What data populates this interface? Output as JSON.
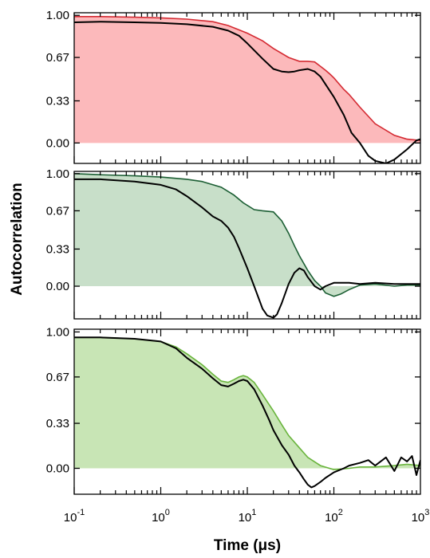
{
  "chart_data": {
    "type": "line",
    "xlabel": "Time (μs)",
    "ylabel": "Autocorrelation",
    "x_scale": "log",
    "xlim": [
      0.1,
      1000
    ],
    "x_ticks": [
      {
        "value": 0.1,
        "base": "10",
        "exp": "-1"
      },
      {
        "value": 1,
        "base": "10",
        "exp": "0"
      },
      {
        "value": 10,
        "base": "10",
        "exp": "1"
      },
      {
        "value": 100,
        "base": "10",
        "exp": "2"
      },
      {
        "value": 1000,
        "base": "10",
        "exp": "3"
      }
    ],
    "panels": [
      {
        "ylim": [
          -0.16,
          1.02
        ],
        "y_ticks": [
          "1.00",
          "0.67",
          "0.33",
          "0.00"
        ],
        "colors": {
          "fill": "#fcb9bb",
          "line": "#d42a32",
          "overlay": "#000000"
        },
        "series": [
          {
            "x": [
              0.1,
              0.2,
              0.5,
              1,
              2,
              4,
              6,
              10,
              15,
              20,
              30,
              40,
              50,
              60,
              70,
              80,
              90,
              100,
              130,
              150,
              200,
              300,
              500,
              700,
              1000
            ],
            "y": [
              0.99,
              0.99,
              0.985,
              0.98,
              0.97,
              0.95,
              0.92,
              0.86,
              0.8,
              0.74,
              0.67,
              0.64,
              0.64,
              0.635,
              0.6,
              0.57,
              0.54,
              0.51,
              0.42,
              0.38,
              0.28,
              0.15,
              0.06,
              0.03,
              0.02
            ]
          },
          {
            "x": [
              0.1,
              0.2,
              0.5,
              1,
              2,
              4,
              6,
              8,
              10,
              15,
              20,
              25,
              30,
              35,
              40,
              50,
              60,
              70,
              80,
              100,
              130,
              160,
              200,
              250,
              300,
              400,
              500,
              700,
              900,
              1000
            ],
            "y": [
              0.945,
              0.95,
              0.945,
              0.94,
              0.93,
              0.91,
              0.88,
              0.84,
              0.78,
              0.66,
              0.58,
              0.56,
              0.555,
              0.56,
              0.57,
              0.58,
              0.56,
              0.52,
              0.46,
              0.36,
              0.22,
              0.08,
              0.0,
              -0.1,
              -0.14,
              -0.16,
              -0.13,
              -0.05,
              0.02,
              0.03
            ]
          }
        ]
      },
      {
        "ylim": [
          -0.29,
          1.02
        ],
        "y_ticks": [
          "1.00",
          "0.67",
          "0.33",
          "0.00"
        ],
        "colors": {
          "fill": "#c8dfc9",
          "line": "#1b5e33",
          "overlay": "#000000"
        },
        "series": [
          {
            "x": [
              0.1,
              0.2,
              0.5,
              1,
              2,
              3,
              5,
              7,
              9,
              12,
              15,
              20,
              25,
              30,
              35,
              40,
              50,
              60,
              70,
              80,
              100,
              120,
              150,
              200,
              300,
              500,
              700,
              1000
            ],
            "y": [
              1.0,
              0.99,
              0.98,
              0.97,
              0.95,
              0.93,
              0.88,
              0.81,
              0.74,
              0.68,
              0.67,
              0.66,
              0.58,
              0.47,
              0.36,
              0.27,
              0.14,
              0.05,
              0.0,
              -0.06,
              -0.09,
              -0.07,
              -0.03,
              0.01,
              0.02,
              0.0,
              0.01,
              0.01
            ]
          },
          {
            "x": [
              0.1,
              0.2,
              0.5,
              1,
              1.5,
              2,
              3,
              4,
              5,
              6,
              7,
              8,
              10,
              12,
              15,
              17,
              20,
              22,
              25,
              30,
              35,
              40,
              45,
              50,
              60,
              70,
              80,
              100,
              150,
              200,
              300,
              500,
              1000
            ],
            "y": [
              0.95,
              0.95,
              0.93,
              0.9,
              0.86,
              0.8,
              0.7,
              0.62,
              0.58,
              0.52,
              0.44,
              0.34,
              0.16,
              0.0,
              -0.2,
              -0.26,
              -0.28,
              -0.25,
              -0.15,
              0.02,
              0.12,
              0.16,
              0.14,
              0.08,
              0.0,
              -0.03,
              0.0,
              0.03,
              0.03,
              0.02,
              0.03,
              0.02,
              0.02
            ]
          }
        ]
      },
      {
        "ylim": [
          -0.19,
          1.02
        ],
        "y_ticks": [
          "1.00",
          "0.67",
          "0.33",
          "0.00"
        ],
        "colors": {
          "fill": "#c8e5b5",
          "line": "#69b43c",
          "overlay": "#000000"
        },
        "series": [
          {
            "x": [
              0.1,
              0.2,
              0.5,
              1,
              1.5,
              2,
              3,
              4,
              5,
              6,
              7,
              8,
              9,
              10,
              12,
              15,
              20,
              25,
              30,
              40,
              50,
              70,
              100,
              150,
              200,
              300,
              500,
              700,
              1000
            ],
            "y": [
              0.96,
              0.96,
              0.95,
              0.93,
              0.89,
              0.84,
              0.76,
              0.69,
              0.64,
              0.63,
              0.65,
              0.67,
              0.68,
              0.67,
              0.63,
              0.54,
              0.42,
              0.32,
              0.24,
              0.15,
              0.08,
              0.02,
              -0.01,
              0.0,
              0.01,
              0.01,
              0.02,
              0.03,
              0.02
            ]
          },
          {
            "x": [
              0.1,
              0.2,
              0.5,
              1,
              1.5,
              2,
              3,
              4,
              5,
              6,
              7,
              8,
              9,
              10,
              12,
              15,
              18,
              20,
              25,
              30,
              35,
              40,
              45,
              50,
              55,
              60,
              70,
              80,
              100,
              130,
              150,
              200,
              250,
              300,
              400,
              500,
              600,
              700,
              800,
              900,
              1000
            ],
            "y": [
              0.96,
              0.96,
              0.95,
              0.93,
              0.88,
              0.81,
              0.73,
              0.66,
              0.61,
              0.6,
              0.62,
              0.64,
              0.65,
              0.64,
              0.58,
              0.46,
              0.35,
              0.28,
              0.17,
              0.1,
              0.02,
              -0.03,
              -0.08,
              -0.12,
              -0.14,
              -0.13,
              -0.1,
              -0.07,
              -0.03,
              0.0,
              0.02,
              0.04,
              0.06,
              0.02,
              0.08,
              -0.02,
              0.08,
              0.05,
              0.09,
              -0.05,
              0.06
            ]
          }
        ]
      }
    ]
  }
}
